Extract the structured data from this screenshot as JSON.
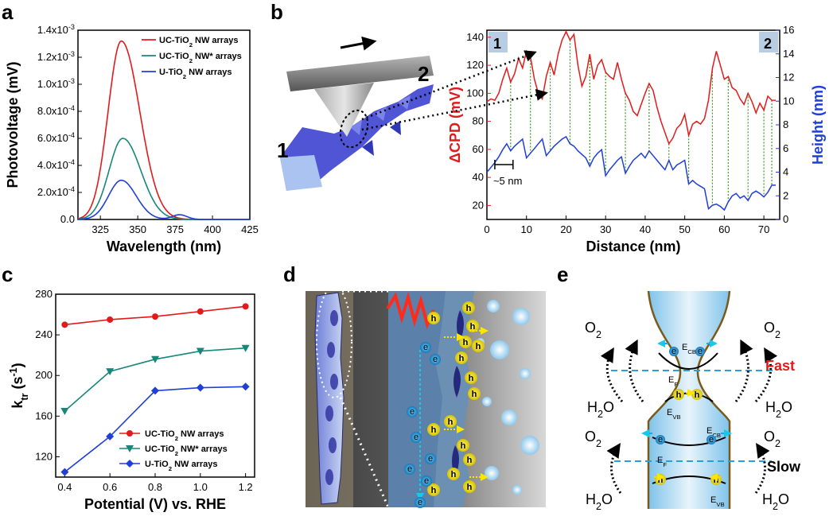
{
  "panels": {
    "a": "a",
    "b": "b",
    "c": "c",
    "d": "d",
    "e": "e"
  },
  "colors": {
    "red": "#e31a1c",
    "teal": "#17877a",
    "blue": "#1f3fd6",
    "green": "#3c9a1a",
    "bandBlue": "#2aa0d8"
  },
  "chart_data": [
    {
      "id": "a",
      "type": "line",
      "xlabel": "Wavelength (nm)",
      "ylabel": "Photovoltage (mV)",
      "xlim": [
        310,
        425
      ],
      "ylim": [
        0,
        0.0014
      ],
      "xticks": [
        325,
        350,
        375,
        400,
        425
      ],
      "yticks": [
        0,
        0.0002,
        0.0004,
        0.0006,
        0.0008,
        0.001,
        0.0012,
        0.0014
      ],
      "ytick_labels": [
        "0.0",
        "2.0x10",
        "4.0x10",
        "6.0x10",
        "8.0x10",
        "1.0x10",
        "1.2x10",
        "1.4x10"
      ],
      "ytick_exps": [
        "",
        "-4",
        "-4",
        "-4",
        "-4",
        "-3",
        "-3",
        "-3"
      ],
      "legend": "top-right",
      "series": [
        {
          "name": "UC-TiO",
          "sub": "2",
          "suffix": " NW arrays",
          "color": "#e31a1c",
          "peak": 0.00132,
          "center": 339,
          "w1": 12.5,
          "w2": 17.5,
          "bump": 0
        },
        {
          "name": "UC-TiO",
          "sub": "2",
          "suffix": " NW* arrays",
          "color": "#17877a",
          "peak": 0.0006,
          "center": 340,
          "w1": 13,
          "w2": 17,
          "bump": 0
        },
        {
          "name": "U-TiO",
          "sub": "2",
          "suffix": " NW arrays",
          "color": "#1f3fd6",
          "peak": 0.00029,
          "center": 339,
          "w1": 12,
          "w2": 14,
          "bump": 3.5e-05
        }
      ]
    },
    {
      "id": "b",
      "type": "line",
      "xlabel": "Distance (nm)",
      "ylabel": "ΔCPD (mV)",
      "ylabel2": "Height (nm)",
      "xlim": [
        0,
        74
      ],
      "ylim": [
        10,
        145
      ],
      "ylim2": [
        0,
        16
      ],
      "xticks": [
        0,
        10,
        20,
        30,
        40,
        50,
        60,
        70
      ],
      "yticks": [
        20,
        40,
        60,
        80,
        100,
        120,
        140
      ],
      "yticks2": [
        0,
        2,
        4,
        6,
        8,
        10,
        12,
        14,
        16
      ],
      "corner_left": "1",
      "corner_right": "2",
      "annotation": "~5 nm",
      "cpd_points": [
        [
          0,
          94
        ],
        [
          1,
          96
        ],
        [
          2,
          95
        ],
        [
          3,
          100
        ],
        [
          4,
          110
        ],
        [
          5,
          118
        ],
        [
          6,
          108
        ],
        [
          7,
          114
        ],
        [
          8,
          125
        ],
        [
          9,
          118
        ],
        [
          10,
          130
        ],
        [
          11,
          126
        ],
        [
          12,
          110
        ],
        [
          13,
          100
        ],
        [
          14,
          96
        ],
        [
          15,
          112
        ],
        [
          16,
          122
        ],
        [
          17,
          113
        ],
        [
          18,
          128
        ],
        [
          19,
          138
        ],
        [
          20,
          144
        ],
        [
          21,
          138
        ],
        [
          22,
          142
        ],
        [
          23,
          120
        ],
        [
          24,
          105
        ],
        [
          25,
          112
        ],
        [
          26,
          128
        ],
        [
          27,
          110
        ],
        [
          28,
          120
        ],
        [
          29,
          124
        ],
        [
          30,
          115
        ],
        [
          31,
          112
        ],
        [
          32,
          110
        ],
        [
          33,
          122
        ],
        [
          34,
          110
        ],
        [
          35,
          100
        ],
        [
          36,
          95
        ],
        [
          37,
          87
        ],
        [
          38,
          84
        ],
        [
          39,
          92
        ],
        [
          40,
          100
        ],
        [
          41,
          107
        ],
        [
          42,
          102
        ],
        [
          43,
          90
        ],
        [
          44,
          80
        ],
        [
          45,
          72
        ],
        [
          46,
          64
        ],
        [
          47,
          68
        ],
        [
          48,
          75
        ],
        [
          49,
          78
        ],
        [
          50,
          85
        ],
        [
          51,
          70
        ],
        [
          52,
          78
        ],
        [
          53,
          80
        ],
        [
          54,
          78
        ],
        [
          55,
          82
        ],
        [
          56,
          95
        ],
        [
          57,
          118
        ],
        [
          58,
          130
        ],
        [
          59,
          120
        ],
        [
          60,
          110
        ],
        [
          61,
          112
        ],
        [
          62,
          104
        ],
        [
          63,
          102
        ],
        [
          64,
          96
        ],
        [
          65,
          92
        ],
        [
          66,
          100
        ],
        [
          67,
          94
        ],
        [
          68,
          86
        ],
        [
          69,
          93
        ],
        [
          70,
          88
        ],
        [
          71,
          98
        ],
        [
          72,
          95
        ],
        [
          73,
          95
        ]
      ],
      "height_points": [
        [
          0,
          4.0
        ],
        [
          1,
          4.4
        ],
        [
          2,
          4.8
        ],
        [
          3,
          5.3
        ],
        [
          4,
          5.9
        ],
        [
          5,
          6.4
        ],
        [
          6,
          5.8
        ],
        [
          7,
          6.2
        ],
        [
          8,
          6.5
        ],
        [
          9,
          6.8
        ],
        [
          10,
          5.2
        ],
        [
          11,
          5.6
        ],
        [
          12,
          6.0
        ],
        [
          13,
          6.4
        ],
        [
          14,
          6.8
        ],
        [
          15,
          5.4
        ],
        [
          16,
          5.8
        ],
        [
          17,
          6.2
        ],
        [
          18,
          6.5
        ],
        [
          19,
          6.8
        ],
        [
          20,
          7.0
        ],
        [
          21,
          6.4
        ],
        [
          22,
          6.2
        ],
        [
          23,
          5.8
        ],
        [
          24,
          5.5
        ],
        [
          25,
          5.2
        ],
        [
          26,
          4.5
        ],
        [
          27,
          5.2
        ],
        [
          28,
          5.6
        ],
        [
          29,
          5.9
        ],
        [
          30,
          3.7
        ],
        [
          31,
          4.2
        ],
        [
          32,
          4.6
        ],
        [
          33,
          5.0
        ],
        [
          34,
          5.3
        ],
        [
          35,
          3.9
        ],
        [
          36,
          4.5
        ],
        [
          37,
          5.0
        ],
        [
          38,
          5.3
        ],
        [
          39,
          5.6
        ],
        [
          40,
          5.2
        ],
        [
          41,
          5.8
        ],
        [
          42,
          5.4
        ],
        [
          43,
          5.0
        ],
        [
          44,
          4.6
        ],
        [
          45,
          4.2
        ],
        [
          46,
          5.0
        ],
        [
          47,
          4.2
        ],
        [
          48,
          4.6
        ],
        [
          49,
          4.8
        ],
        [
          50,
          5.0
        ],
        [
          51,
          3.0
        ],
        [
          52,
          3.3
        ],
        [
          53,
          3.0
        ],
        [
          54,
          2.8
        ],
        [
          55,
          2.6
        ],
        [
          56,
          0.9
        ],
        [
          57,
          1.2
        ],
        [
          58,
          1.3
        ],
        [
          59,
          1.1
        ],
        [
          60,
          0.8
        ],
        [
          61,
          1.5
        ],
        [
          62,
          2.0
        ],
        [
          63,
          2.2
        ],
        [
          64,
          1.8
        ],
        [
          65,
          2.0
        ],
        [
          66,
          1.6
        ],
        [
          67,
          2.2
        ],
        [
          68,
          2.4
        ],
        [
          69,
          2.2
        ],
        [
          70,
          1.9
        ],
        [
          71,
          2.3
        ],
        [
          72,
          2.9
        ],
        [
          73,
          2.9
        ]
      ],
      "guides": [
        6,
        11,
        16,
        21,
        26,
        30,
        35,
        41,
        46,
        51,
        57,
        61,
        66,
        70,
        72
      ]
    },
    {
      "id": "c",
      "type": "line",
      "xlabel": "Potential (V) vs. RHE",
      "ylabel": "k",
      "ylabel_sub": "tr",
      "ylabel_unit": "(s",
      "ylabel_sup": "-1",
      "ylabel_end": ")",
      "xlim": [
        0.36,
        1.24
      ],
      "ylim": [
        100,
        280
      ],
      "xticks": [
        0.4,
        0.6,
        0.8,
        1.0,
        1.2
      ],
      "xtick_labels": [
        "0.4",
        "0.6",
        "0.8",
        "1.0",
        "1.2"
      ],
      "yticks": [
        120,
        160,
        200,
        240,
        280
      ],
      "legend": "bottom-right",
      "x": [
        0.4,
        0.6,
        0.8,
        1.0,
        1.2
      ],
      "series": [
        {
          "name": "UC-TiO",
          "sub": "2",
          "suffix": " NW arrays",
          "color": "#e31a1c",
          "marker": "circle",
          "values": [
            250,
            255,
            258,
            263,
            268
          ]
        },
        {
          "name": "UC-TiO",
          "sub": "2",
          "suffix": " NW* arrays",
          "color": "#17877a",
          "marker": "triangle",
          "values": [
            165,
            204,
            216,
            224,
            227
          ]
        },
        {
          "name": "U-TiO",
          "sub": "2",
          "suffix": " NW arrays",
          "color": "#1f3fd6",
          "marker": "diamond",
          "values": [
            105,
            140,
            185,
            188,
            189
          ]
        }
      ]
    }
  ],
  "panel_d": {
    "hole": "h",
    "electron": "e"
  },
  "panel_e": {
    "o2": "O",
    "o2_sub": "2",
    "h2o": "H",
    "h2o_sub": "2",
    "h2o_end": "O",
    "ecb": "E",
    "ecb_sub": "CB",
    "evb": "E",
    "evb_sub": "VB",
    "ef": "E",
    "ef_sub": "F",
    "fast": "Fast",
    "slow": "Slow",
    "hole": "h",
    "electron": "e"
  }
}
